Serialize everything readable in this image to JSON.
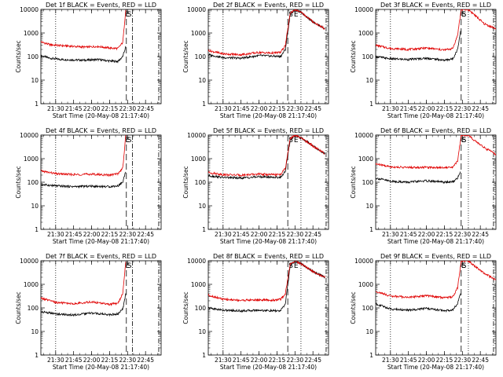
{
  "colors": {
    "events": "#000000",
    "lld": "#e00000",
    "background": "#ffffff",
    "axes": "#000000"
  },
  "common": {
    "ylabel": "Counts/sec",
    "xlabel": "Start Time (20-May-08 21:17:40)",
    "x_ticks": [
      "21:30",
      "21:45",
      "22:00",
      "22:15",
      "22:30",
      "22:45"
    ],
    "y_ticks": [
      "1",
      "10",
      "100",
      "1000",
      "10000"
    ],
    "marker_labels": [
      "S",
      "E"
    ]
  },
  "chart_data": [
    {
      "type": "line",
      "title": "Det 1f BLACK = Events, RED = LLD",
      "x_range": [
        "21:17:40",
        "22:58:00"
      ],
      "ylim": [
        1,
        10000
      ],
      "yscale": "log",
      "series": [
        {
          "name": "Events",
          "color": "#000000",
          "x": [
            "21:17:40",
            "21:25",
            "21:35",
            "21:45",
            "21:55",
            "22:05",
            "22:15",
            "22:22",
            "22:26",
            "22:28:30"
          ],
          "values": [
            110,
            85,
            75,
            72,
            70,
            75,
            65,
            62,
            100,
            260
          ]
        },
        {
          "name": "LLD",
          "color": "#e00000",
          "x": [
            "21:17:40",
            "21:25",
            "21:35",
            "21:45",
            "21:55",
            "22:05",
            "22:15",
            "22:22",
            "22:26",
            "22:28:30"
          ],
          "values": [
            420,
            320,
            290,
            270,
            250,
            270,
            230,
            220,
            400,
            10000
          ]
        }
      ],
      "vlines": [
        {
          "x": "21:30",
          "style": "dotted"
        },
        {
          "x": "22:29",
          "style": "long-dash"
        },
        {
          "x": "22:34",
          "style": "dash-dot"
        },
        {
          "x": "22:56",
          "style": "dash-dot"
        }
      ]
    },
    {
      "type": "line",
      "title": "Det 2f BLACK = Events, RED = LLD",
      "x_range": [
        "21:17:40",
        "22:58:00"
      ],
      "ylim": [
        1,
        10000
      ],
      "yscale": "log",
      "series": [
        {
          "name": "Events",
          "color": "#000000",
          "x": [
            "21:17:40",
            "21:30",
            "21:45",
            "22:00",
            "22:10",
            "22:18",
            "22:22",
            "22:26",
            "22:30",
            "22:36",
            "22:45",
            "22:55"
          ],
          "values": [
            120,
            90,
            85,
            110,
            105,
            100,
            200,
            6000,
            10000,
            7000,
            3000,
            1500
          ]
        },
        {
          "name": "LLD",
          "color": "#e00000",
          "x": [
            "21:17:40",
            "21:30",
            "21:45",
            "22:00",
            "22:10",
            "22:18",
            "22:22",
            "22:26",
            "22:30",
            "22:36",
            "22:45",
            "22:55"
          ],
          "values": [
            180,
            130,
            120,
            150,
            140,
            150,
            300,
            7000,
            10000,
            7000,
            3000,
            1500
          ]
        }
      ],
      "vlines": [
        {
          "x": "21:30",
          "style": "dotted"
        },
        {
          "x": "22:24",
          "style": "long-dash"
        },
        {
          "x": "22:35",
          "style": "dotted"
        },
        {
          "x": "22:56",
          "style": "dash-dot"
        }
      ]
    },
    {
      "type": "line",
      "title": "Det 3f BLACK = Events, RED = LLD",
      "x_range": [
        "21:17:40",
        "22:58:00"
      ],
      "ylim": [
        1,
        10000
      ],
      "yscale": "log",
      "series": [
        {
          "name": "Events",
          "color": "#000000",
          "x": [
            "21:17:40",
            "21:30",
            "21:45",
            "22:00",
            "22:15",
            "22:22",
            "22:26",
            "22:28:30"
          ],
          "values": [
            100,
            80,
            75,
            85,
            70,
            80,
            200,
            1200
          ]
        },
        {
          "name": "LLD",
          "color": "#e00000",
          "x": [
            "21:17:40",
            "21:30",
            "21:45",
            "22:00",
            "22:15",
            "22:22",
            "22:26",
            "22:29",
            "22:35",
            "22:40",
            "22:48",
            "22:58"
          ],
          "values": [
            300,
            220,
            200,
            230,
            190,
            220,
            800,
            10000,
            10000,
            6000,
            2500,
            1500
          ]
        }
      ],
      "vlines": [
        {
          "x": "21:30",
          "style": "dotted"
        },
        {
          "x": "22:29",
          "style": "long-dash"
        },
        {
          "x": "22:35",
          "style": "dotted"
        },
        {
          "x": "22:56",
          "style": "dash-dot"
        }
      ]
    },
    {
      "type": "line",
      "title": "Det 4f BLACK = Events, RED = LLD",
      "x_range": [
        "21:17:40",
        "22:58:00"
      ],
      "ylim": [
        1,
        10000
      ],
      "yscale": "log",
      "series": [
        {
          "name": "Events",
          "color": "#000000",
          "x": [
            "21:17:40",
            "21:30",
            "21:45",
            "22:00",
            "22:15",
            "22:22",
            "22:26",
            "22:28:30"
          ],
          "values": [
            80,
            70,
            65,
            68,
            65,
            70,
            100,
            300
          ]
        },
        {
          "name": "LLD",
          "color": "#e00000",
          "x": [
            "21:17:40",
            "21:30",
            "21:45",
            "22:00",
            "22:15",
            "22:22",
            "22:26",
            "22:28:30"
          ],
          "values": [
            300,
            230,
            210,
            220,
            200,
            230,
            400,
            10000
          ]
        }
      ],
      "vlines": [
        {
          "x": "21:30",
          "style": "dotted"
        },
        {
          "x": "22:29",
          "style": "long-dash"
        },
        {
          "x": "22:34",
          "style": "dash-dot"
        },
        {
          "x": "22:56",
          "style": "dash-dot"
        }
      ]
    },
    {
      "type": "line",
      "title": "Det 5f BLACK = Events, RED = LLD",
      "x_range": [
        "21:17:40",
        "22:58:00"
      ],
      "ylim": [
        1,
        10000
      ],
      "yscale": "log",
      "series": [
        {
          "name": "Events",
          "color": "#000000",
          "x": [
            "21:17:40",
            "21:30",
            "21:45",
            "22:00",
            "22:10",
            "22:18",
            "22:22",
            "22:26",
            "22:30",
            "22:36",
            "22:45",
            "22:55"
          ],
          "values": [
            190,
            160,
            150,
            170,
            165,
            160,
            300,
            6000,
            10000,
            7000,
            3500,
            1600
          ]
        },
        {
          "name": "LLD",
          "color": "#e00000",
          "x": [
            "21:17:40",
            "21:30",
            "21:45",
            "22:00",
            "22:10",
            "22:18",
            "22:22",
            "22:26",
            "22:30",
            "22:36",
            "22:45",
            "22:55"
          ],
          "values": [
            260,
            210,
            200,
            220,
            210,
            210,
            400,
            7000,
            10000,
            7000,
            3500,
            1600
          ]
        }
      ],
      "vlines": [
        {
          "x": "21:30",
          "style": "dotted"
        },
        {
          "x": "22:24",
          "style": "long-dash"
        },
        {
          "x": "22:35",
          "style": "dotted"
        },
        {
          "x": "22:56",
          "style": "dash-dot"
        }
      ]
    },
    {
      "type": "line",
      "title": "Det 6f BLACK = Events, RED = LLD",
      "x_range": [
        "21:17:40",
        "22:58:00"
      ],
      "ylim": [
        1,
        10000
      ],
      "yscale": "log",
      "series": [
        {
          "name": "Events",
          "color": "#000000",
          "x": [
            "21:17:40",
            "21:30",
            "21:45",
            "22:00",
            "22:15",
            "22:22",
            "22:26",
            "22:28:30"
          ],
          "values": [
            150,
            110,
            100,
            115,
            100,
            105,
            150,
            300
          ]
        },
        {
          "name": "LLD",
          "color": "#e00000",
          "x": [
            "21:17:40",
            "21:30",
            "21:45",
            "22:00",
            "22:15",
            "22:22",
            "22:26",
            "22:29",
            "22:35",
            "22:40",
            "22:48",
            "22:58"
          ],
          "values": [
            600,
            450,
            420,
            430,
            420,
            430,
            800,
            10000,
            10000,
            6000,
            3000,
            1500
          ]
        }
      ],
      "vlines": [
        {
          "x": "21:30",
          "style": "dotted"
        },
        {
          "x": "22:29",
          "style": "long-dash"
        },
        {
          "x": "22:35",
          "style": "dotted"
        },
        {
          "x": "22:56",
          "style": "dash-dot"
        }
      ]
    },
    {
      "type": "line",
      "title": "Det 7f BLACK = Events, RED = LLD",
      "x_range": [
        "21:17:40",
        "22:58:00"
      ],
      "ylim": [
        1,
        10000
      ],
      "yscale": "log",
      "series": [
        {
          "name": "Events",
          "color": "#000000",
          "x": [
            "21:17:40",
            "21:30",
            "21:45",
            "22:00",
            "22:15",
            "22:22",
            "22:26",
            "22:28:30"
          ],
          "values": [
            70,
            55,
            50,
            60,
            52,
            55,
            90,
            400
          ]
        },
        {
          "name": "LLD",
          "color": "#e00000",
          "x": [
            "21:17:40",
            "21:30",
            "21:45",
            "22:00",
            "22:15",
            "22:22",
            "22:26",
            "22:28:30"
          ],
          "values": [
            260,
            170,
            150,
            180,
            140,
            160,
            400,
            10000
          ]
        }
      ],
      "vlines": [
        {
          "x": "21:30",
          "style": "dotted"
        },
        {
          "x": "22:29",
          "style": "long-dash"
        },
        {
          "x": "22:34",
          "style": "dash-dot"
        },
        {
          "x": "22:56",
          "style": "dash-dot"
        }
      ]
    },
    {
      "type": "line",
      "title": "Det 8f BLACK = Events, RED = LLD",
      "x_range": [
        "21:17:40",
        "22:58:00"
      ],
      "ylim": [
        1,
        10000
      ],
      "yscale": "log",
      "series": [
        {
          "name": "Events",
          "color": "#000000",
          "x": [
            "21:17:40",
            "21:30",
            "21:45",
            "22:00",
            "22:10",
            "22:18",
            "22:22",
            "22:26",
            "22:30",
            "22:36",
            "22:45",
            "22:55"
          ],
          "values": [
            100,
            80,
            75,
            80,
            75,
            75,
            150,
            6000,
            10000,
            7000,
            3500,
            2000
          ]
        },
        {
          "name": "LLD",
          "color": "#e00000",
          "x": [
            "21:17:40",
            "21:30",
            "21:45",
            "22:00",
            "22:10",
            "22:18",
            "22:22",
            "22:26",
            "22:30",
            "22:36",
            "22:45",
            "22:55"
          ],
          "values": [
            350,
            230,
            210,
            220,
            210,
            230,
            400,
            7000,
            10000,
            7000,
            3500,
            2000
          ]
        }
      ],
      "vlines": [
        {
          "x": "21:30",
          "style": "dotted"
        },
        {
          "x": "22:24",
          "style": "long-dash"
        },
        {
          "x": "22:35",
          "style": "dotted"
        },
        {
          "x": "22:56",
          "style": "dash-dot"
        }
      ]
    },
    {
      "type": "line",
      "title": "Det 9f BLACK = Events, RED = LLD",
      "x_range": [
        "21:17:40",
        "22:58:00"
      ],
      "ylim": [
        1,
        10000
      ],
      "yscale": "log",
      "series": [
        {
          "name": "Events",
          "color": "#000000",
          "x": [
            "21:17:40",
            "21:30",
            "21:45",
            "22:00",
            "22:15",
            "22:22",
            "22:26",
            "22:28:30"
          ],
          "values": [
            150,
            90,
            80,
            95,
            75,
            85,
            150,
            400
          ]
        },
        {
          "name": "LLD",
          "color": "#e00000",
          "x": [
            "21:17:40",
            "21:30",
            "21:45",
            "22:00",
            "22:15",
            "22:22",
            "22:26",
            "22:29",
            "22:35",
            "22:40",
            "22:48",
            "22:58"
          ],
          "values": [
            500,
            320,
            280,
            330,
            270,
            300,
            700,
            10000,
            10000,
            6000,
            3000,
            1500
          ]
        }
      ],
      "vlines": [
        {
          "x": "21:30",
          "style": "dotted"
        },
        {
          "x": "22:29",
          "style": "long-dash"
        },
        {
          "x": "22:35",
          "style": "dotted"
        },
        {
          "x": "22:56",
          "style": "dash-dot"
        }
      ]
    }
  ]
}
